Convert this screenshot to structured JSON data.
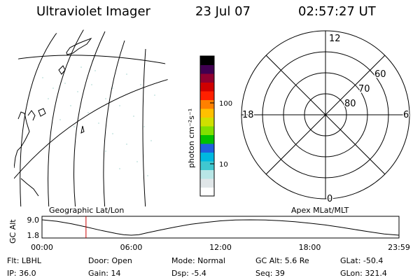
{
  "header": {
    "instrument": "Ultraviolet Imager",
    "date": "23 Jul 07",
    "time": "02:57:27 UT"
  },
  "map": {
    "title": "Geographic Lat/Lon"
  },
  "colorbar": {
    "label": "photon cm⁻²s⁻¹",
    "tick_100": "100",
    "tick_10": "10",
    "colors": [
      "#ffffff",
      "#e0e6e8",
      "#b8e6e6",
      "#40c8d0",
      "#00b8e0",
      "#2060e0",
      "#00c000",
      "#80e000",
      "#d0e000",
      "#ffc000",
      "#ff8000",
      "#ff2000",
      "#d00000",
      "#900030",
      "#400050",
      "#000000"
    ]
  },
  "polar": {
    "title": "Apex MLat/MLT",
    "mlt_labels": {
      "top": "12",
      "left": "18",
      "right": "6",
      "bottom": "0"
    },
    "mlat_labels": {
      "r60": "60",
      "r70": "70",
      "r80": "80"
    }
  },
  "chart_data": {
    "type": "line",
    "title": "",
    "ylabel": "GC Alt",
    "x_ticks": [
      "00:00",
      "06:00",
      "12:00",
      "18:00",
      "23:59"
    ],
    "y_ticks": [
      "9.0",
      "1.8"
    ],
    "ylim": [
      1.8,
      9.0
    ],
    "xlim": [
      0,
      24
    ],
    "series": [
      {
        "x": [
          0,
          1,
          2,
          3,
          4,
          5,
          5.5,
          6,
          6.5,
          7,
          8,
          9,
          10,
          11,
          12,
          13,
          14,
          15,
          16,
          17,
          18,
          19,
          20,
          21,
          22,
          23,
          24
        ],
        "y": [
          9.0,
          8.3,
          7.1,
          5.6,
          4.0,
          2.6,
          2.0,
          1.8,
          2.0,
          2.8,
          4.3,
          5.7,
          6.9,
          7.8,
          8.5,
          8.9,
          9.0,
          8.9,
          8.6,
          8.1,
          7.4,
          6.6,
          5.6,
          4.5,
          3.4,
          2.4,
          1.8
        ]
      }
    ],
    "marker_time": 2.958
  },
  "info": {
    "flt": "Flt: LBHL",
    "door": "Door: Open",
    "mode": "Mode: Normal",
    "gcalt": "GC Alt: 5.6 Re",
    "glat": "GLat: -50.4",
    "ip": "IP: 36.0",
    "gain": "Gain: 14",
    "dsp": "Dsp:   -5.4",
    "seq": "Seq: 39",
    "glon": "GLon: 321.4"
  }
}
